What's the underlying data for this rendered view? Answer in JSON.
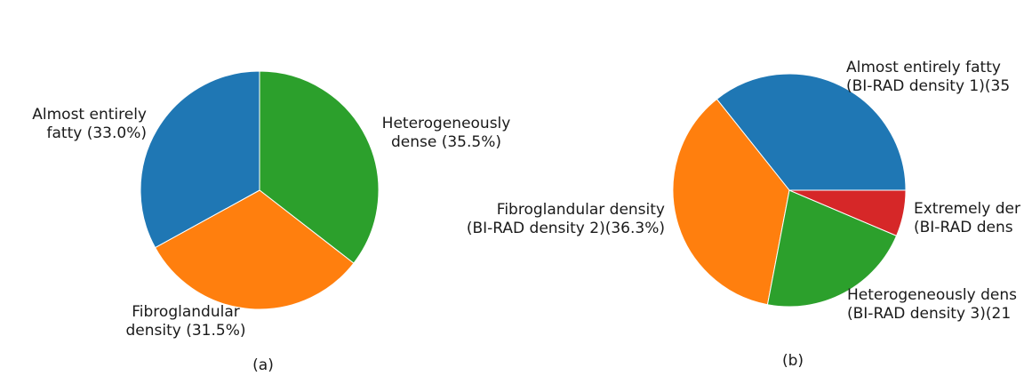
{
  "chart_data": [
    {
      "type": "pie",
      "caption": "(a)",
      "start_angle_deg": 90,
      "direction": "clockwise",
      "slices": [
        {
          "label_lines": [
            "Heterogeneously",
            "dense (35.5%)"
          ],
          "value": 35.5,
          "color": "#2ca02c"
        },
        {
          "label_lines": [
            "Fibroglandular",
            "density (31.5%)"
          ],
          "value": 31.5,
          "color": "#ff7f0e"
        },
        {
          "label_lines": [
            "Almost entirely",
            "fatty (33.0%)"
          ],
          "value": 33.0,
          "color": "#1f77b4"
        }
      ]
    },
    {
      "type": "pie",
      "caption": "(b)",
      "start_angle_deg": 0,
      "direction": "counterclockwise",
      "slices": [
        {
          "label_lines": [
            "Almost entirely fatty",
            "(BI-RAD density 1)(35"
          ],
          "value": 35.7,
          "color": "#1f77b4"
        },
        {
          "label_lines": [
            "Fibroglandular density",
            "(BI-RAD density 2)(36.3%)"
          ],
          "value": 36.3,
          "color": "#ff7f0e"
        },
        {
          "label_lines": [
            "Heterogeneously dens",
            "(BI-RAD density 3)(21"
          ],
          "value": 21.6,
          "color": "#2ca02c"
        },
        {
          "label_lines": [
            "Extremely der",
            "(BI-RAD dens"
          ],
          "value": 6.4,
          "color": "#d62728"
        }
      ]
    }
  ]
}
